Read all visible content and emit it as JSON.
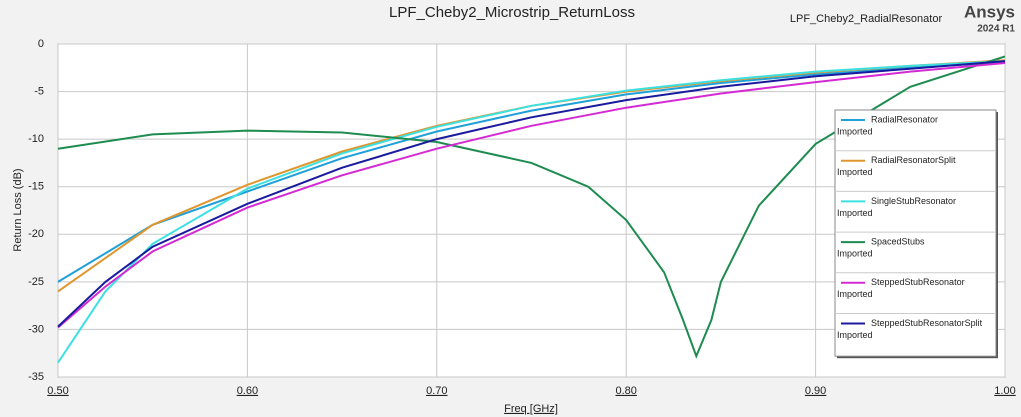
{
  "chart_data": {
    "type": "line",
    "title": "LPF_Cheby2_Microstrip_ReturnLoss",
    "subtitle": "LPF_Cheby2_RadialResonator",
    "brand": "Ansys",
    "version": "2024 R1",
    "x_label": "Freq [GHz]",
    "y_label": "Return Loss (dB)",
    "xlim": [
      0.5,
      1.0
    ],
    "xticks": [
      {
        "value": 0.5,
        "label": "0.50"
      },
      {
        "value": 0.6,
        "label": "0.60"
      },
      {
        "value": 0.7,
        "label": "0.70"
      },
      {
        "value": 0.8,
        "label": "0.80"
      },
      {
        "value": 0.9,
        "label": "0.90"
      },
      {
        "value": 1.0,
        "label": "1.00"
      }
    ],
    "ylim": [
      -35,
      0
    ],
    "yticks": [
      0,
      -5,
      -10,
      -15,
      -20,
      -25,
      -30,
      -35
    ],
    "grid": true,
    "legend": "right",
    "series": [
      {
        "name": "RadialResonator",
        "source": "Imported",
        "color": "#1fa0d8",
        "x": [
          0.5,
          0.55,
          0.6,
          0.65,
          0.7,
          0.75,
          0.8,
          0.85,
          0.9,
          0.95,
          1.0
        ],
        "values": [
          -25,
          -19,
          -15.5,
          -12,
          -9.2,
          -7,
          -5.3,
          -4.1,
          -3.2,
          -2.5,
          -1.9
        ]
      },
      {
        "name": "RadialResonatorSplit",
        "source": "Imported",
        "color": "#e0962f",
        "x": [
          0.5,
          0.55,
          0.6,
          0.65,
          0.7,
          0.75,
          0.8,
          0.85,
          0.9,
          0.95,
          1.0
        ],
        "values": [
          -26,
          -19,
          -14.8,
          -11.3,
          -8.6,
          -6.5,
          -5,
          -3.9,
          -3,
          -2.3,
          -1.7
        ]
      },
      {
        "name": "SingleStubResonator",
        "source": "Imported",
        "color": "#3de0e0",
        "x": [
          0.5,
          0.525,
          0.55,
          0.6,
          0.65,
          0.7,
          0.75,
          0.8,
          0.85,
          0.9,
          0.95,
          1.0
        ],
        "values": [
          -33.5,
          -26,
          -21,
          -15.2,
          -11.5,
          -8.7,
          -6.5,
          -4.9,
          -3.8,
          -2.9,
          -2.3,
          -1.8
        ]
      },
      {
        "name": "SpacedStubs",
        "source": "Imported",
        "color": "#1e8c50",
        "x": [
          0.5,
          0.55,
          0.6,
          0.65,
          0.7,
          0.75,
          0.78,
          0.8,
          0.82,
          0.83,
          0.837,
          0.845,
          0.85,
          0.87,
          0.9,
          0.95,
          1.0
        ],
        "values": [
          -11,
          -9.5,
          -9.1,
          -9.3,
          -10.3,
          -12.5,
          -15,
          -18.5,
          -24,
          -29,
          -32.8,
          -29,
          -25,
          -17,
          -10.5,
          -4.5,
          -1.3
        ]
      },
      {
        "name": "SteppedStubResonator",
        "source": "Imported",
        "color": "#d42ad4",
        "x": [
          0.5,
          0.525,
          0.55,
          0.6,
          0.65,
          0.7,
          0.75,
          0.8,
          0.85,
          0.9,
          0.95,
          1.0
        ],
        "values": [
          -29.8,
          -25.5,
          -21.8,
          -17.2,
          -13.8,
          -11,
          -8.6,
          -6.7,
          -5.2,
          -4,
          -2.9,
          -2
        ]
      },
      {
        "name": "SteppedStubResonatorSplit",
        "source": "Imported",
        "color": "#1a1a9e",
        "x": [
          0.5,
          0.525,
          0.55,
          0.6,
          0.65,
          0.7,
          0.75,
          0.8,
          0.85,
          0.9,
          0.95,
          1.0
        ],
        "values": [
          -29.7,
          -25,
          -21.3,
          -16.8,
          -13,
          -10,
          -7.7,
          -5.9,
          -4.5,
          -3.4,
          -2.6,
          -1.8
        ]
      }
    ]
  }
}
